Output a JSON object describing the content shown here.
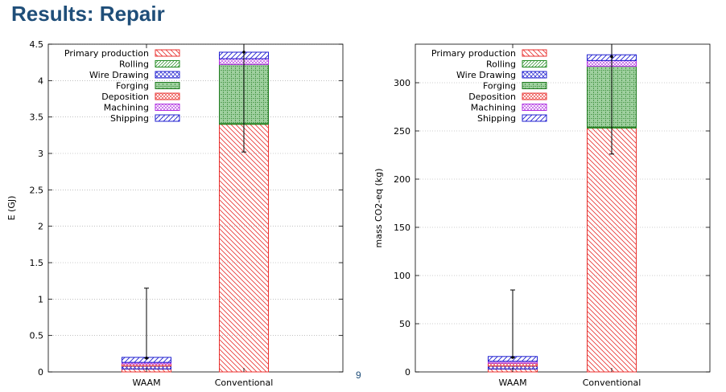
{
  "slide": {
    "title": "Results: Repair",
    "page_number": "9"
  },
  "colors": {
    "Primary production": "#e8312f",
    "Rolling": "#1f8a1f",
    "Wire Drawing": "#2020d0",
    "Forging": "#1f7a1f",
    "Deposition": "#e8312f",
    "Machining": "#b030e0",
    "Shipping": "#2020d0"
  },
  "chart_data": [
    {
      "type": "bar",
      "stacked": true,
      "categories": [
        "WAAM",
        "Conventional"
      ],
      "ylabel": "E (GJ)",
      "ylim": [
        0,
        4.5
      ],
      "yticks": [
        0,
        0.5,
        1,
        1.5,
        2,
        2.5,
        3,
        3.5,
        4,
        4.5
      ],
      "ytick_labels": [
        "0",
        "0.5",
        "1",
        "1.5",
        "2",
        "2.5",
        "3",
        "3.5",
        "4",
        "4.5"
      ],
      "grid": true,
      "legend_position": "top-left",
      "series": [
        {
          "name": "Primary production",
          "values": [
            0.04,
            3.4
          ]
        },
        {
          "name": "Rolling",
          "values": [
            0,
            0.01
          ]
        },
        {
          "name": "Wire Drawing",
          "values": [
            0.04,
            0
          ]
        },
        {
          "name": "Forging",
          "values": [
            0,
            0.81
          ]
        },
        {
          "name": "Deposition",
          "values": [
            0.03,
            0
          ]
        },
        {
          "name": "Machining",
          "values": [
            0.02,
            0.08
          ]
        },
        {
          "name": "Shipping",
          "values": [
            0.07,
            0.09
          ]
        }
      ],
      "error_bars": [
        {
          "center": 0.19,
          "low": 0.19,
          "high": 1.15
        },
        {
          "center": 4.39,
          "low": 3.02,
          "high": 4.5
        }
      ]
    },
    {
      "type": "bar",
      "stacked": true,
      "categories": [
        "WAAM",
        "Conventional"
      ],
      "ylabel": "mass CO2-eq (kg)",
      "ylim": [
        0,
        340
      ],
      "yticks": [
        0,
        50,
        100,
        150,
        200,
        250,
        300
      ],
      "ytick_labels": [
        "0",
        "50",
        "100",
        "150",
        "200",
        "250",
        "300"
      ],
      "grid": true,
      "legend_position": "top-left",
      "series": [
        {
          "name": "Primary production",
          "values": [
            3,
            253
          ]
        },
        {
          "name": "Rolling",
          "values": [
            0,
            1
          ]
        },
        {
          "name": "Wire Drawing",
          "values": [
            3,
            0
          ]
        },
        {
          "name": "Forging",
          "values": [
            0,
            63
          ]
        },
        {
          "name": "Deposition",
          "values": [
            3,
            0
          ]
        },
        {
          "name": "Machining",
          "values": [
            2,
            6
          ]
        },
        {
          "name": "Shipping",
          "values": [
            5,
            6
          ]
        }
      ],
      "error_bars": [
        {
          "center": 15,
          "low": 15,
          "high": 85
        },
        {
          "center": 327,
          "low": 226,
          "high": 340
        }
      ]
    }
  ]
}
